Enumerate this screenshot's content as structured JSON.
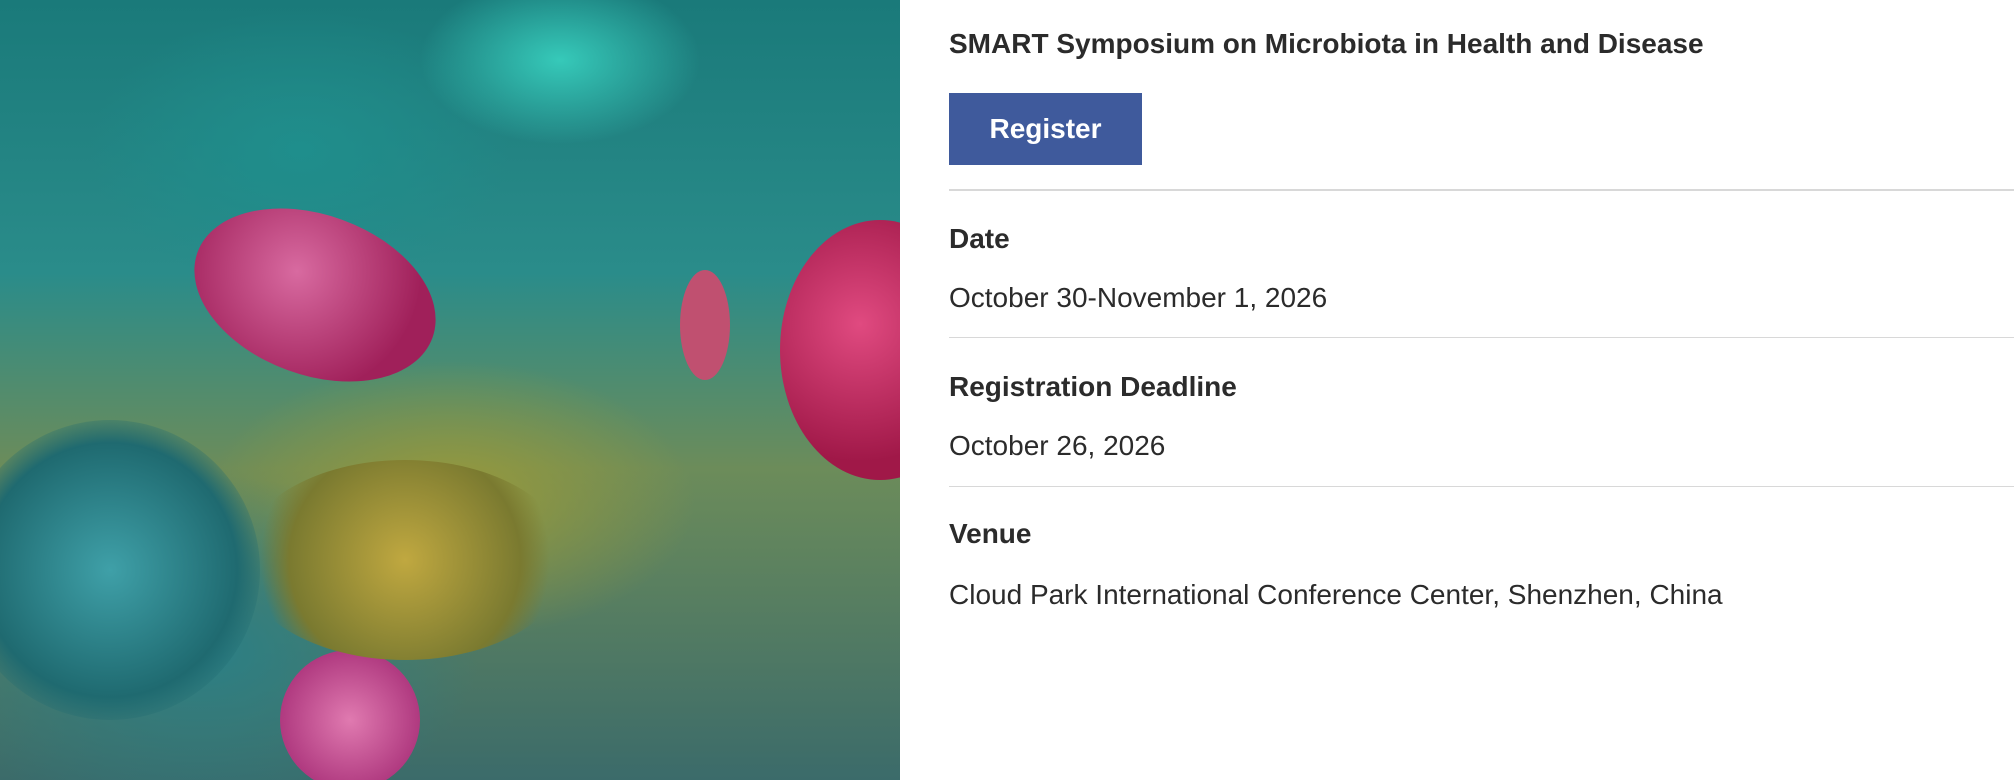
{
  "hero_image": {
    "alt_subject": "microbiota illustration",
    "colors": [
      "#1f8e8c",
      "#c2336e",
      "#9a9a3a"
    ]
  },
  "event": {
    "title": "SMART Symposium on Microbiota in Health and Disease",
    "register_label": "Register",
    "details": [
      {
        "label": "Date",
        "value": "October 30-November 1, 2026"
      },
      {
        "label": "Registration Deadline",
        "value": "October 26, 2026"
      },
      {
        "label": "Venue",
        "value": "Cloud Park International Conference Center, Shenzhen, China"
      }
    ]
  },
  "colors": {
    "button": "#3f5a9c",
    "divider": "#d8d8d8",
    "text": "#2b2b2b"
  }
}
